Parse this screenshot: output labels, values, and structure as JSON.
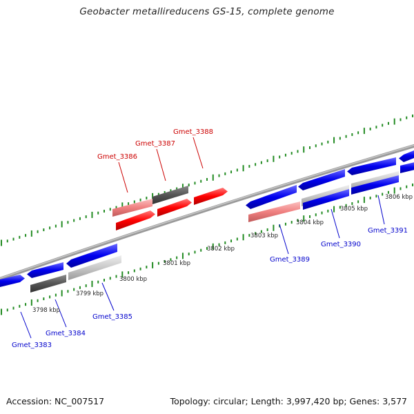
{
  "title": "Geobacter metallireducens GS-15, complete genome",
  "footer": {
    "accession": "Accession: NC_007517",
    "info": "Topology: circular; Length: 3,997,420 bp; Genes: 3,577"
  },
  "colors": {
    "red": "#ff0000",
    "pink": "#f08080",
    "blue": "#0000ee",
    "dark_gray": "#555555",
    "light_gray": "#cccccc",
    "tick_green": "#228b22",
    "label_red": "#cc0000",
    "label_blue": "#0000cc"
  },
  "kbp_labels": [
    "3798 kbp",
    "3799 kbp",
    "3800 kbp",
    "3801 kbp",
    "3802 kbp",
    "3803 kbp",
    "3804 kbp",
    "3805 kbp",
    "3806 kbp"
  ],
  "gene_labels": [
    {
      "text": "Gmet_3383",
      "color": "blue"
    },
    {
      "text": "Gmet_3384",
      "color": "blue"
    },
    {
      "text": "Gmet_3385",
      "color": "blue"
    },
    {
      "text": "Gmet_3386",
      "color": "red"
    },
    {
      "text": "Gmet_3387",
      "color": "red"
    },
    {
      "text": "Gmet_3388",
      "color": "red"
    },
    {
      "text": "Gmet_3389",
      "color": "blue"
    },
    {
      "text": "Gmet_3390",
      "color": "blue"
    },
    {
      "text": "Gmet_3391",
      "color": "blue"
    }
  ]
}
